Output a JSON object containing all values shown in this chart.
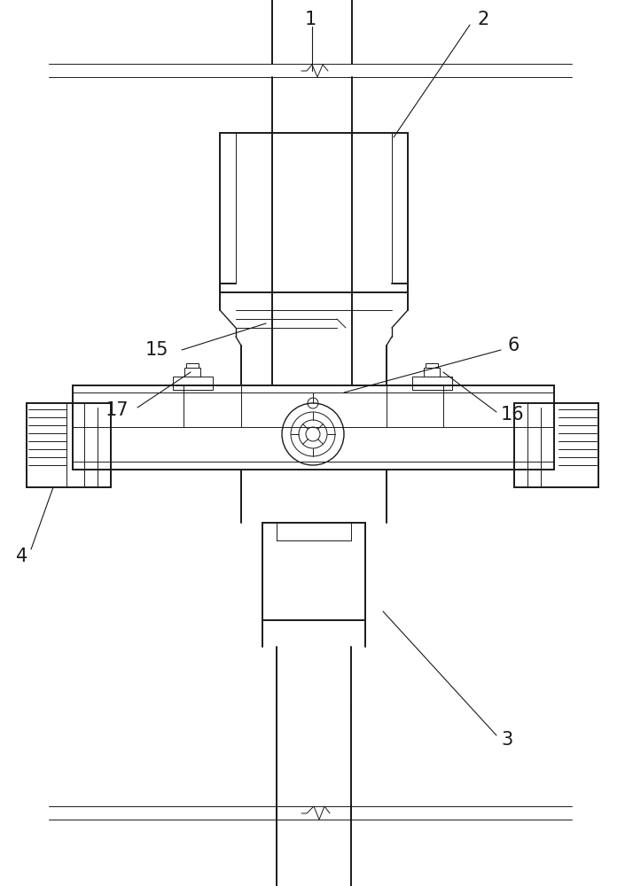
{
  "bg_color": "#ffffff",
  "line_color": "#1a1a1a",
  "figsize": [
    7.05,
    10.0
  ],
  "dpi": 100,
  "lw_main": 1.4,
  "lw_thin": 0.7,
  "lw_med": 1.0
}
